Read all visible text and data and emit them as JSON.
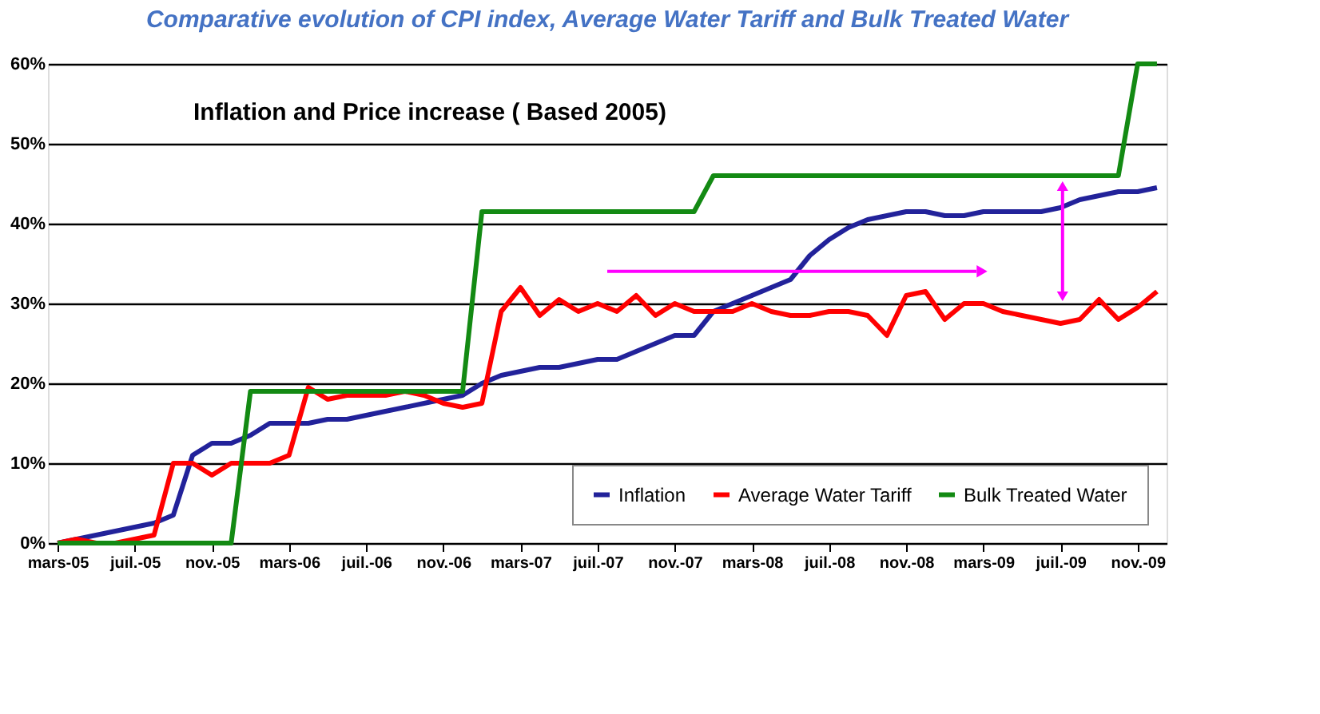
{
  "chart_data": {
    "type": "line",
    "title": "Comparative evolution of CPI index, Average Water Tariff and Bulk Treated Water",
    "annotations": [
      "Inflation and Price increase ( Based 2005)"
    ],
    "categories": [
      "mars-05",
      null,
      null,
      null,
      "juil.-05",
      null,
      null,
      null,
      "nov.-05",
      null,
      null,
      null,
      "mars-06",
      null,
      null,
      null,
      "juil.-06",
      null,
      null,
      null,
      "nov.-06",
      null,
      null,
      null,
      "mars-07",
      null,
      null,
      null,
      "juil.-07",
      null,
      null,
      null,
      "nov.-07",
      null,
      null,
      null,
      "mars-08",
      null,
      null,
      null,
      "juil.-08",
      null,
      null,
      null,
      "nov.-08",
      null,
      null,
      null,
      "mars-09",
      null,
      null,
      null,
      "juil.-09",
      null,
      null,
      null,
      "nov.-09",
      null
    ],
    "series": [
      {
        "name": "Inflation",
        "color": "#22229a",
        "values": [
          0,
          0.5,
          1,
          1.5,
          2,
          2.5,
          3.5,
          11,
          12.5,
          12.5,
          13.5,
          15,
          15,
          15,
          15.5,
          15.5,
          16,
          16.5,
          17,
          17.5,
          18,
          18.5,
          20,
          21,
          21.5,
          22,
          22,
          22.5,
          23,
          23,
          24,
          25,
          26,
          26,
          29,
          30,
          31,
          32,
          33,
          36,
          38,
          39.5,
          40.5,
          41,
          41.5,
          41.5,
          41,
          41,
          41.5,
          41.5,
          41.5,
          41.5,
          42,
          43,
          43.5,
          44,
          44,
          44.5
        ]
      },
      {
        "name": "Average Water Tariff",
        "color": "#ff0000",
        "values": [
          0,
          0.5,
          0,
          0,
          0.5,
          1,
          10,
          10,
          8.5,
          10,
          10,
          10,
          11,
          19.5,
          18,
          18.5,
          18.5,
          18.5,
          19,
          18.5,
          17.5,
          17,
          17.5,
          29,
          32,
          28.5,
          30.5,
          29,
          30,
          29,
          31,
          28.5,
          30,
          29,
          29,
          29,
          30,
          29,
          28.5,
          28.5,
          29,
          29,
          28.5,
          26,
          31,
          31.5,
          28,
          30,
          30,
          29,
          28.5,
          28,
          27.5,
          28,
          30.5,
          28,
          29.5,
          31.5
        ]
      },
      {
        "name": "Bulk Treated Water",
        "color": "#138a13",
        "values": [
          0,
          0,
          0,
          0,
          0,
          0,
          0,
          0,
          0,
          0,
          19,
          19,
          19,
          19,
          19,
          19,
          19,
          19,
          19,
          19,
          19,
          19,
          41.5,
          41.5,
          41.5,
          41.5,
          41.5,
          41.5,
          41.5,
          41.5,
          41.5,
          41.5,
          41.5,
          41.5,
          46,
          46,
          46,
          46,
          46,
          46,
          46,
          46,
          46,
          46,
          46,
          46,
          46,
          46,
          46,
          46,
          46,
          46,
          46,
          46,
          46,
          46,
          60,
          60
        ]
      }
    ],
    "ylim": [
      0,
      60
    ],
    "yticks": [
      {
        "value": 0,
        "label": "0%"
      },
      {
        "value": 10,
        "label": "10%"
      },
      {
        "value": 20,
        "label": "20%"
      },
      {
        "value": 30,
        "label": "30%"
      },
      {
        "value": 40,
        "label": "40%"
      },
      {
        "value": 50,
        "label": "50%"
      },
      {
        "value": 60,
        "label": "60%"
      }
    ],
    "grid": "y",
    "legend": "bottom right"
  }
}
